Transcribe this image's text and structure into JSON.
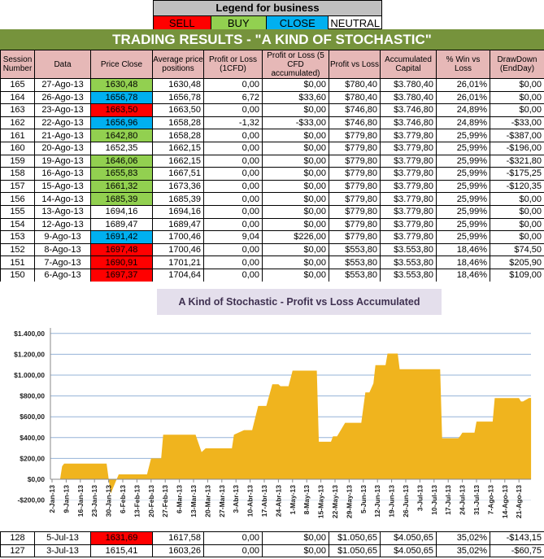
{
  "legend": {
    "title": "Legend for business",
    "items": [
      {
        "label": "SELL",
        "color": "#ff0000"
      },
      {
        "label": "BUY",
        "color": "#92d050"
      },
      {
        "label": "CLOSE",
        "color": "#00b0f0"
      },
      {
        "label": "NEUTRAL",
        "color": "#ffffff"
      }
    ]
  },
  "title": "TRADING RESULTS - \"A KIND OF STOCHASTIC\"",
  "headers": [
    "Session Number",
    "Data",
    "Price Close",
    "Average price positions",
    "Profit or Loss (1CFD)",
    "Profit or Loss (5 CFD accumulated)",
    "Profit vs Loss",
    "Accumulated Capital",
    "% Win vs Loss",
    "DrawDown (EndDay)"
  ],
  "rows": [
    {
      "signal": "buy",
      "cells": [
        "165",
        "27-Ago-13",
        "1630,48",
        "1630,48",
        "0,00",
        "$0,00",
        "$780,40",
        "$3.780,40",
        "26,01%",
        "$0,00"
      ]
    },
    {
      "signal": "close",
      "cells": [
        "164",
        "26-Ago-13",
        "1656,78",
        "1656,78",
        "6,72",
        "$33,60",
        "$780,40",
        "$3.780,40",
        "26,01%",
        "$0,00"
      ]
    },
    {
      "signal": "sell",
      "cells": [
        "163",
        "23-Ago-13",
        "1663,50",
        "1663,50",
        "0,00",
        "$0,00",
        "$746,80",
        "$3.746,80",
        "24,89%",
        "$0,00"
      ]
    },
    {
      "signal": "close",
      "cells": [
        "162",
        "22-Ago-13",
        "1656,96",
        "1658,28",
        "-1,32",
        "-$33,00",
        "$746,80",
        "$3.746,80",
        "24,89%",
        "-$33,00"
      ]
    },
    {
      "signal": "buy",
      "cells": [
        "161",
        "21-Ago-13",
        "1642,80",
        "1658,28",
        "0,00",
        "$0,00",
        "$779,80",
        "$3.779,80",
        "25,99%",
        "-$387,00"
      ]
    },
    {
      "signal": "neutral",
      "cells": [
        "160",
        "20-Ago-13",
        "1652,35",
        "1662,15",
        "0,00",
        "$0,00",
        "$779,80",
        "$3.779,80",
        "25,99%",
        "-$196,00"
      ]
    },
    {
      "signal": "buy",
      "cells": [
        "159",
        "19-Ago-13",
        "1646,06",
        "1662,15",
        "0,00",
        "$0,00",
        "$779,80",
        "$3.779,80",
        "25,99%",
        "-$321,80"
      ]
    },
    {
      "signal": "buy",
      "cells": [
        "158",
        "16-Ago-13",
        "1655,83",
        "1667,51",
        "0,00",
        "$0,00",
        "$779,80",
        "$3.779,80",
        "25,99%",
        "-$175,25"
      ]
    },
    {
      "signal": "buy",
      "cells": [
        "157",
        "15-Ago-13",
        "1661,32",
        "1673,36",
        "0,00",
        "$0,00",
        "$779,80",
        "$3.779,80",
        "25,99%",
        "-$120,35"
      ]
    },
    {
      "signal": "buy",
      "cells": [
        "156",
        "14-Ago-13",
        "1685,39",
        "1685,39",
        "0,00",
        "$0,00",
        "$779,80",
        "$3.779,80",
        "25,99%",
        "$0,00"
      ]
    },
    {
      "signal": "neutral",
      "cells": [
        "155",
        "13-Ago-13",
        "1694,16",
        "1694,16",
        "0,00",
        "$0,00",
        "$779,80",
        "$3.779,80",
        "25,99%",
        "$0,00"
      ]
    },
    {
      "signal": "neutral",
      "cells": [
        "154",
        "12-Ago-13",
        "1689,47",
        "1689,47",
        "0,00",
        "$0,00",
        "$779,80",
        "$3.779,80",
        "25,99%",
        "$0,00"
      ]
    },
    {
      "signal": "close",
      "cells": [
        "153",
        "9-Ago-13",
        "1691,42",
        "1700,46",
        "9,04",
        "$226,00",
        "$779,80",
        "$3.779,80",
        "25,99%",
        "$0,00"
      ]
    },
    {
      "signal": "sell",
      "cells": [
        "152",
        "8-Ago-13",
        "1697,48",
        "1700,46",
        "0,00",
        "$0,00",
        "$553,80",
        "$3.553,80",
        "18,46%",
        "$74,50"
      ]
    },
    {
      "signal": "sell",
      "cells": [
        "151",
        "7-Ago-13",
        "1690,91",
        "1701,21",
        "0,00",
        "$0,00",
        "$553,80",
        "$3.553,80",
        "18,46%",
        "$205,90"
      ]
    },
    {
      "signal": "sell",
      "cells": [
        "150",
        "6-Ago-13",
        "1697,37",
        "1704,64",
        "0,00",
        "$0,00",
        "$553,80",
        "$3.553,80",
        "18,46%",
        "$109,00"
      ]
    }
  ],
  "bottom_rows": [
    {
      "signal": "sell",
      "cells": [
        "128",
        "5-Jul-13",
        "1631,69",
        "1617,58",
        "0,00",
        "$0,00",
        "$1.050,65",
        "$4.050,65",
        "35,02%",
        "-$143,15"
      ]
    },
    {
      "signal": "neutral",
      "cells": [
        "127",
        "3-Jul-13",
        "1615,41",
        "1603,26",
        "0,00",
        "$0,00",
        "$1.050,65",
        "$4.050,65",
        "35,02%",
        "-$60,75"
      ]
    }
  ],
  "chart_data": {
    "type": "area",
    "title": "A Kind of Stochastic - Profit vs Loss Accumulated",
    "fill_color": "#f0b41e",
    "ylim": [
      -200,
      1400
    ],
    "yticks": [
      -200,
      0,
      200,
      400,
      600,
      800,
      1000,
      1200,
      1400
    ],
    "ytick_labels": [
      "-$200,00",
      "$0,00",
      "$200,00",
      "$400,00",
      "$600,00",
      "$800,00",
      "$1.000,00",
      "$1.200,00",
      "$1.400,00"
    ],
    "xtick_labels": [
      "2-Jan-13",
      "9-Jan-13",
      "16-Jan-13",
      "23-Jan-13",
      "30-Jan-13",
      "6-Feb-13",
      "13-Feb-13",
      "20-Feb-13",
      "27-Feb-13",
      "6-Mar-13",
      "13-Mar-13",
      "20-Mar-13",
      "27-Mar-13",
      "3-Abr-13",
      "10-Abr-13",
      "17-Abr-13",
      "24-Abr-13",
      "1-May-13",
      "8-May-13",
      "15-May-13",
      "22-May-13",
      "29-May-13",
      "5-Jun-13",
      "12-Jun-13",
      "19-Jun-13",
      "26-Jun-13",
      "3-Jul-13",
      "10-Jul-13",
      "17-Jul-13",
      "24-Jul-13",
      "31-Jul-13",
      "7-Ago-13",
      "14-Ago-13",
      "21-Ago-13"
    ],
    "grid": true,
    "points": [
      [
        "2013-01-06",
        0
      ],
      [
        "2013-01-07",
        125
      ],
      [
        "2013-01-08",
        151
      ],
      [
        "2013-01-29",
        151
      ],
      [
        "2013-01-31",
        -140
      ],
      [
        "2013-02-03",
        0
      ],
      [
        "2013-02-04",
        47
      ],
      [
        "2013-02-18",
        47
      ],
      [
        "2013-02-20",
        200
      ],
      [
        "2013-02-25",
        200
      ],
      [
        "2013-02-26",
        428
      ],
      [
        "2013-03-14",
        428
      ],
      [
        "2013-03-17",
        261
      ],
      [
        "2013-03-19",
        297
      ],
      [
        "2013-04-01",
        297
      ],
      [
        "2013-04-02",
        428
      ],
      [
        "2013-04-07",
        472
      ],
      [
        "2013-04-11",
        472
      ],
      [
        "2013-04-14",
        704
      ],
      [
        "2013-04-18",
        704
      ],
      [
        "2013-04-21",
        912
      ],
      [
        "2013-04-24",
        912
      ],
      [
        "2013-04-25",
        894
      ],
      [
        "2013-04-29",
        894
      ],
      [
        "2013-05-01",
        1043
      ],
      [
        "2013-05-13",
        1043
      ],
      [
        "2013-05-14",
        360
      ],
      [
        "2013-05-20",
        360
      ],
      [
        "2013-05-21",
        412
      ],
      [
        "2013-05-23",
        412
      ],
      [
        "2013-05-27",
        542
      ],
      [
        "2013-06-04",
        542
      ],
      [
        "2013-06-06",
        834
      ],
      [
        "2013-06-08",
        834
      ],
      [
        "2013-06-10",
        920
      ],
      [
        "2013-06-11",
        1095
      ],
      [
        "2013-06-16",
        1095
      ],
      [
        "2013-06-17",
        1207
      ],
      [
        "2013-06-22",
        1207
      ],
      [
        "2013-06-23",
        1056
      ],
      [
        "2013-07-13",
        1056
      ],
      [
        "2013-07-14",
        394
      ],
      [
        "2013-07-22",
        394
      ],
      [
        "2013-07-23",
        417
      ],
      [
        "2013-07-24",
        448
      ],
      [
        "2013-07-30",
        448
      ],
      [
        "2013-07-31",
        553.8
      ],
      [
        "2013-08-08",
        553.8
      ],
      [
        "2013-08-09",
        779.8
      ],
      [
        "2013-08-21",
        779.8
      ],
      [
        "2013-08-22",
        746.8
      ],
      [
        "2013-08-23",
        746.8
      ],
      [
        "2013-08-26",
        780.4
      ],
      [
        "2013-08-27",
        780.4
      ]
    ]
  }
}
